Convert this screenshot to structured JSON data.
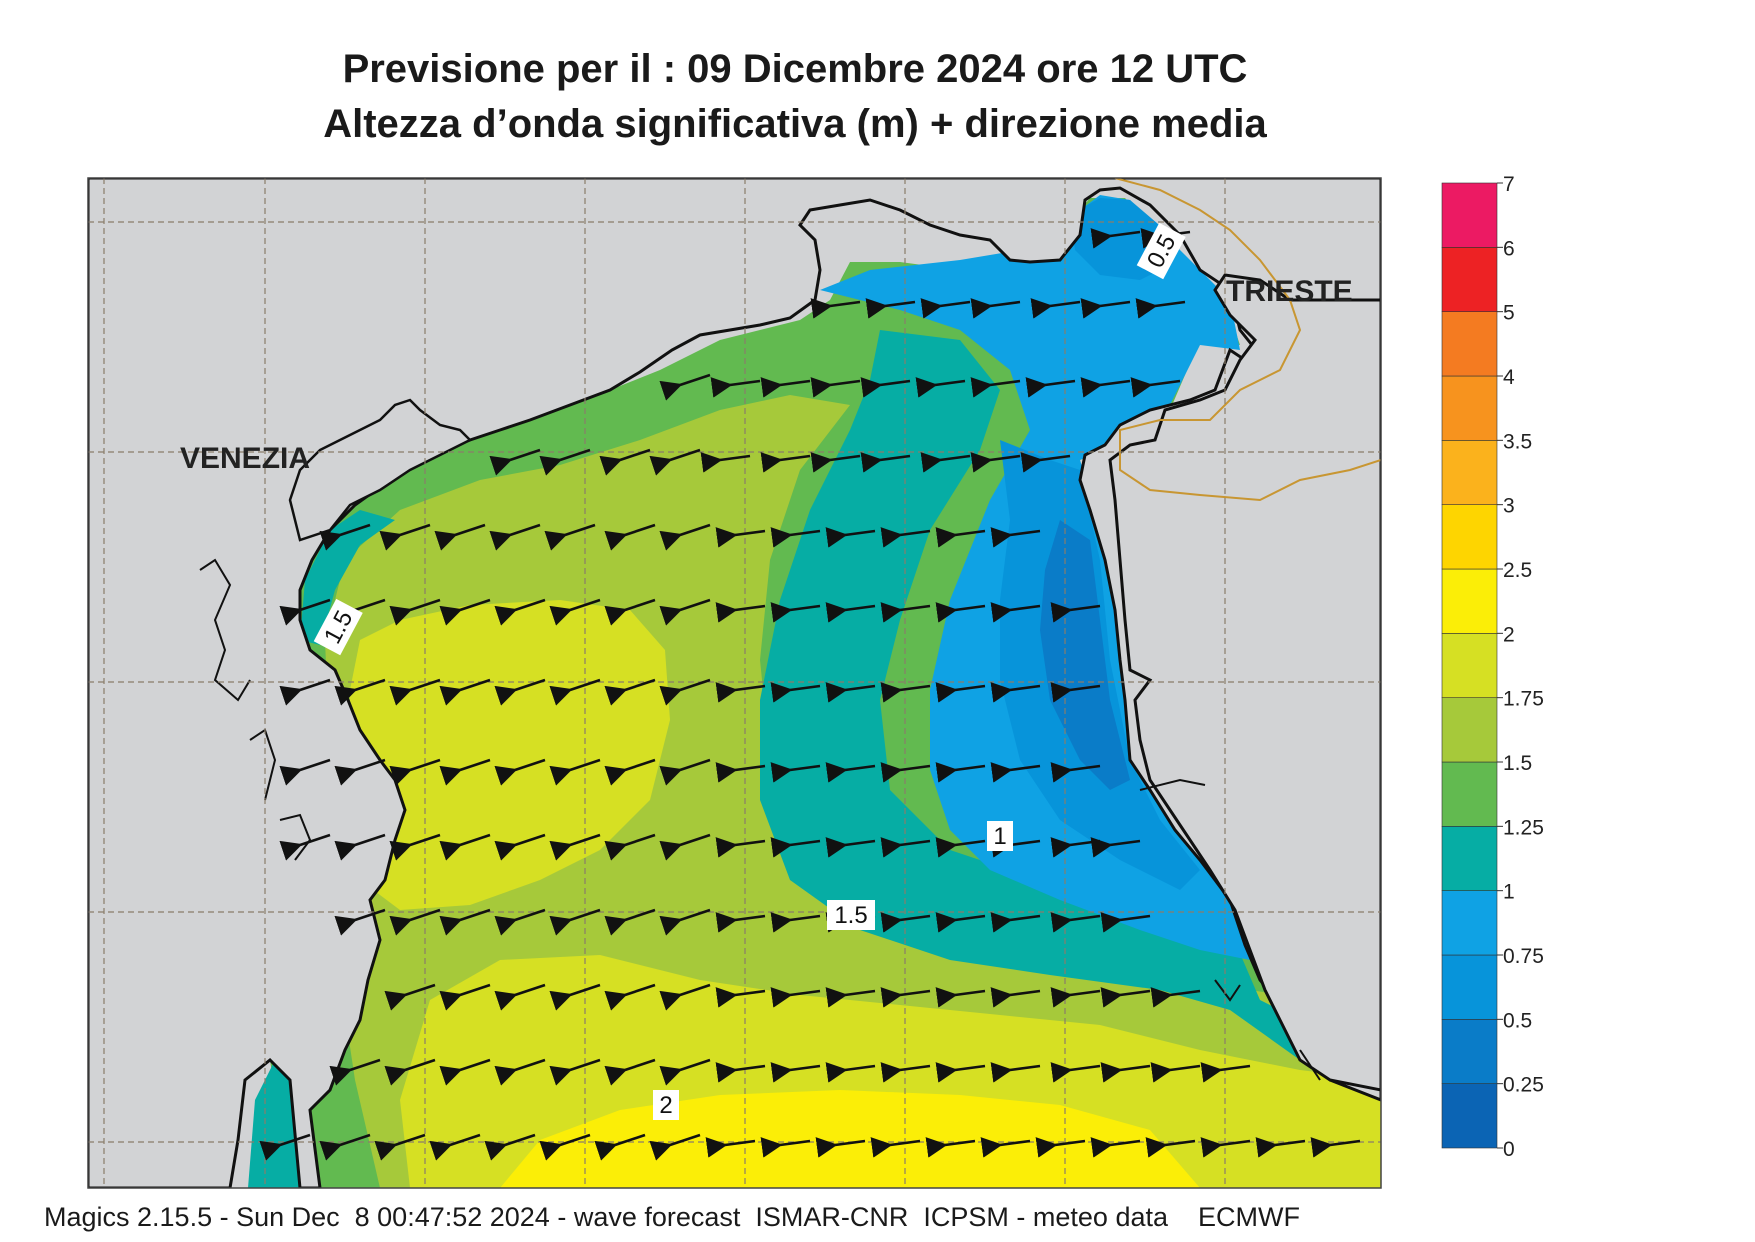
{
  "header": {
    "line1": "Previsione per il  :  09 Dicembre  2024   ore 12 UTC",
    "line2": "Altezza d’onda significativa (m) + direzione media"
  },
  "map": {
    "labels": {
      "venezia": "VENEZIA",
      "trieste": "TRIESTE"
    },
    "contour_labels": [
      "0.5",
      "1.5",
      "1",
      "1.5",
      "2"
    ],
    "land_color": "#d2d3d5",
    "coast_color": "#111111",
    "border_color": "#c89632",
    "wave_direction": "from east / north-east toward west / south-west"
  },
  "colorbar": {
    "ticks": [
      "0",
      "0.25",
      "0.5",
      "0.75",
      "1",
      "1.25",
      "1.5",
      "1.75",
      "2",
      "2.5",
      "3",
      "3.5",
      "4",
      "5",
      "6",
      "7"
    ],
    "colors": [
      "#0b64b4",
      "#0a7cc8",
      "#0794da",
      "#0fa2e4",
      "#06ada4",
      "#62ba50",
      "#a6c93a",
      "#d6e023",
      "#fbee07",
      "#fed500",
      "#fbb21c",
      "#f7931e",
      "#f47b21",
      "#ed2224",
      "#ec1a63"
    ],
    "unit": "m"
  },
  "footer": {
    "text": "Magics 2.15.5 - Sun Dec  8 00:47:52 2024 - wave forecast  ISMAR-CNR  ICPSM - meteo data    ECMWF"
  }
}
